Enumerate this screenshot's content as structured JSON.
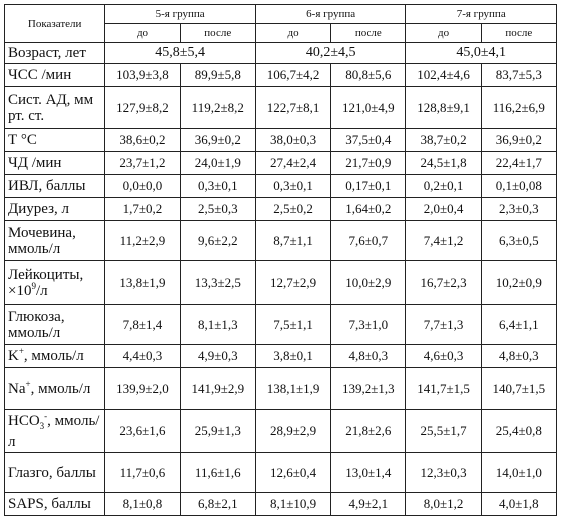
{
  "header": {
    "indicator": "Показатели",
    "groups": [
      "5-я группа",
      "6-я группа",
      "7-я группа"
    ],
    "before": "до",
    "after": "после"
  },
  "rows": [
    {
      "label": "Возраст, лет",
      "merged": [
        "45,8±5,4",
        "40,2±4,5",
        "45,0±4,1"
      ]
    },
    {
      "label": "ЧСС /мин",
      "values": [
        "103,9±3,8",
        "89,9±5,8",
        "106,7±4,2",
        "80,8±5,6",
        "102,4±4,6",
        "83,7±5,3"
      ]
    },
    {
      "label": "Сист. АД, мм рт. ст.",
      "values": [
        "127,9±8,2",
        "119,2±8,2",
        "122,7±8,1",
        "121,0±4,9",
        "128,8±9,1",
        "116,2±6,9"
      ]
    },
    {
      "label": "Т °С",
      "values": [
        "38,6±0,2",
        "36,9±0,2",
        "38,0±0,3",
        "37,5±0,4",
        "38,7±0,2",
        "36,9±0,2"
      ]
    },
    {
      "label": "ЧД /мин",
      "values": [
        "23,7±1,2",
        "24,0±1,9",
        "27,4±2,4",
        "21,7±0,9",
        "24,5±1,8",
        "22,4±1,7"
      ]
    },
    {
      "label": "ИВЛ, баллы",
      "values": [
        "0,0±0,0",
        "0,3±0,1",
        "0,3±0,1",
        "0,17±0,1",
        "0,2±0,1",
        "0,1±0,08"
      ]
    },
    {
      "label": "Диурез, л",
      "values": [
        "1,7±0,2",
        "2,5±0,3",
        "2,5±0,2",
        "1,64±0,2",
        "2,0±0,4",
        "2,3±0,3"
      ]
    },
    {
      "label": "Мочевина, ммоль/л",
      "values": [
        "11,2±2,9",
        "9,6±2,2",
        "8,7±1,1",
        "7,6±0,7",
        "7,4±1,2",
        "6,3±0,5"
      ]
    },
    {
      "label_pre": "Лейкоциты, ×10",
      "label_sup": "9",
      "label_post": "/л",
      "values": [
        "13,8±1,9",
        "13,3±2,5",
        "12,7±2,9",
        "10,0±2,9",
        "16,7±2,3",
        "10,2±0,9"
      ]
    },
    {
      "label": "Глюкоза, ммоль/л",
      "values": [
        "7,8±1,4",
        "8,1±1,3",
        "7,5±1,1",
        "7,3±1,0",
        "7,7±1,3",
        "6,4±1,1"
      ]
    },
    {
      "label_pre": "K",
      "label_sup": "+",
      "label_post": ", ммоль/л",
      "values": [
        "4,4±0,3",
        "4,9±0,3",
        "3,8±0,1",
        "4,8±0,3",
        "4,6±0,3",
        "4,8±0,3"
      ]
    },
    {
      "label_pre": "Na",
      "label_sup": "+",
      "label_post": ", ммоль/л",
      "values": [
        "139,9±2,0",
        "141,9±2,9",
        "138,1±1,9",
        "139,2±1,3",
        "141,7±1,5",
        "140,7±1,5"
      ]
    },
    {
      "label_pre": "HCO",
      "label_sub": "3",
      "label_sup": "-",
      "label_post": ", ммоль/л",
      "values": [
        "23,6±1,6",
        "25,9±1,3",
        "28,9±2,9",
        "21,8±2,6",
        "25,5±1,7",
        "25,4±0,8"
      ]
    },
    {
      "label": "Глазго, баллы",
      "values": [
        "11,7±0,6",
        "11,6±1,6",
        "12,6±0,4",
        "13,0±1,4",
        "12,3±0,3",
        "14,0±1,0"
      ]
    },
    {
      "label": "SAPS, баллы",
      "values": [
        "8,1±0,8",
        "6,8±2,1",
        "8,1±10,9",
        "4,9±2,1",
        "8,0±1,2",
        "4,0±1,8"
      ]
    }
  ]
}
